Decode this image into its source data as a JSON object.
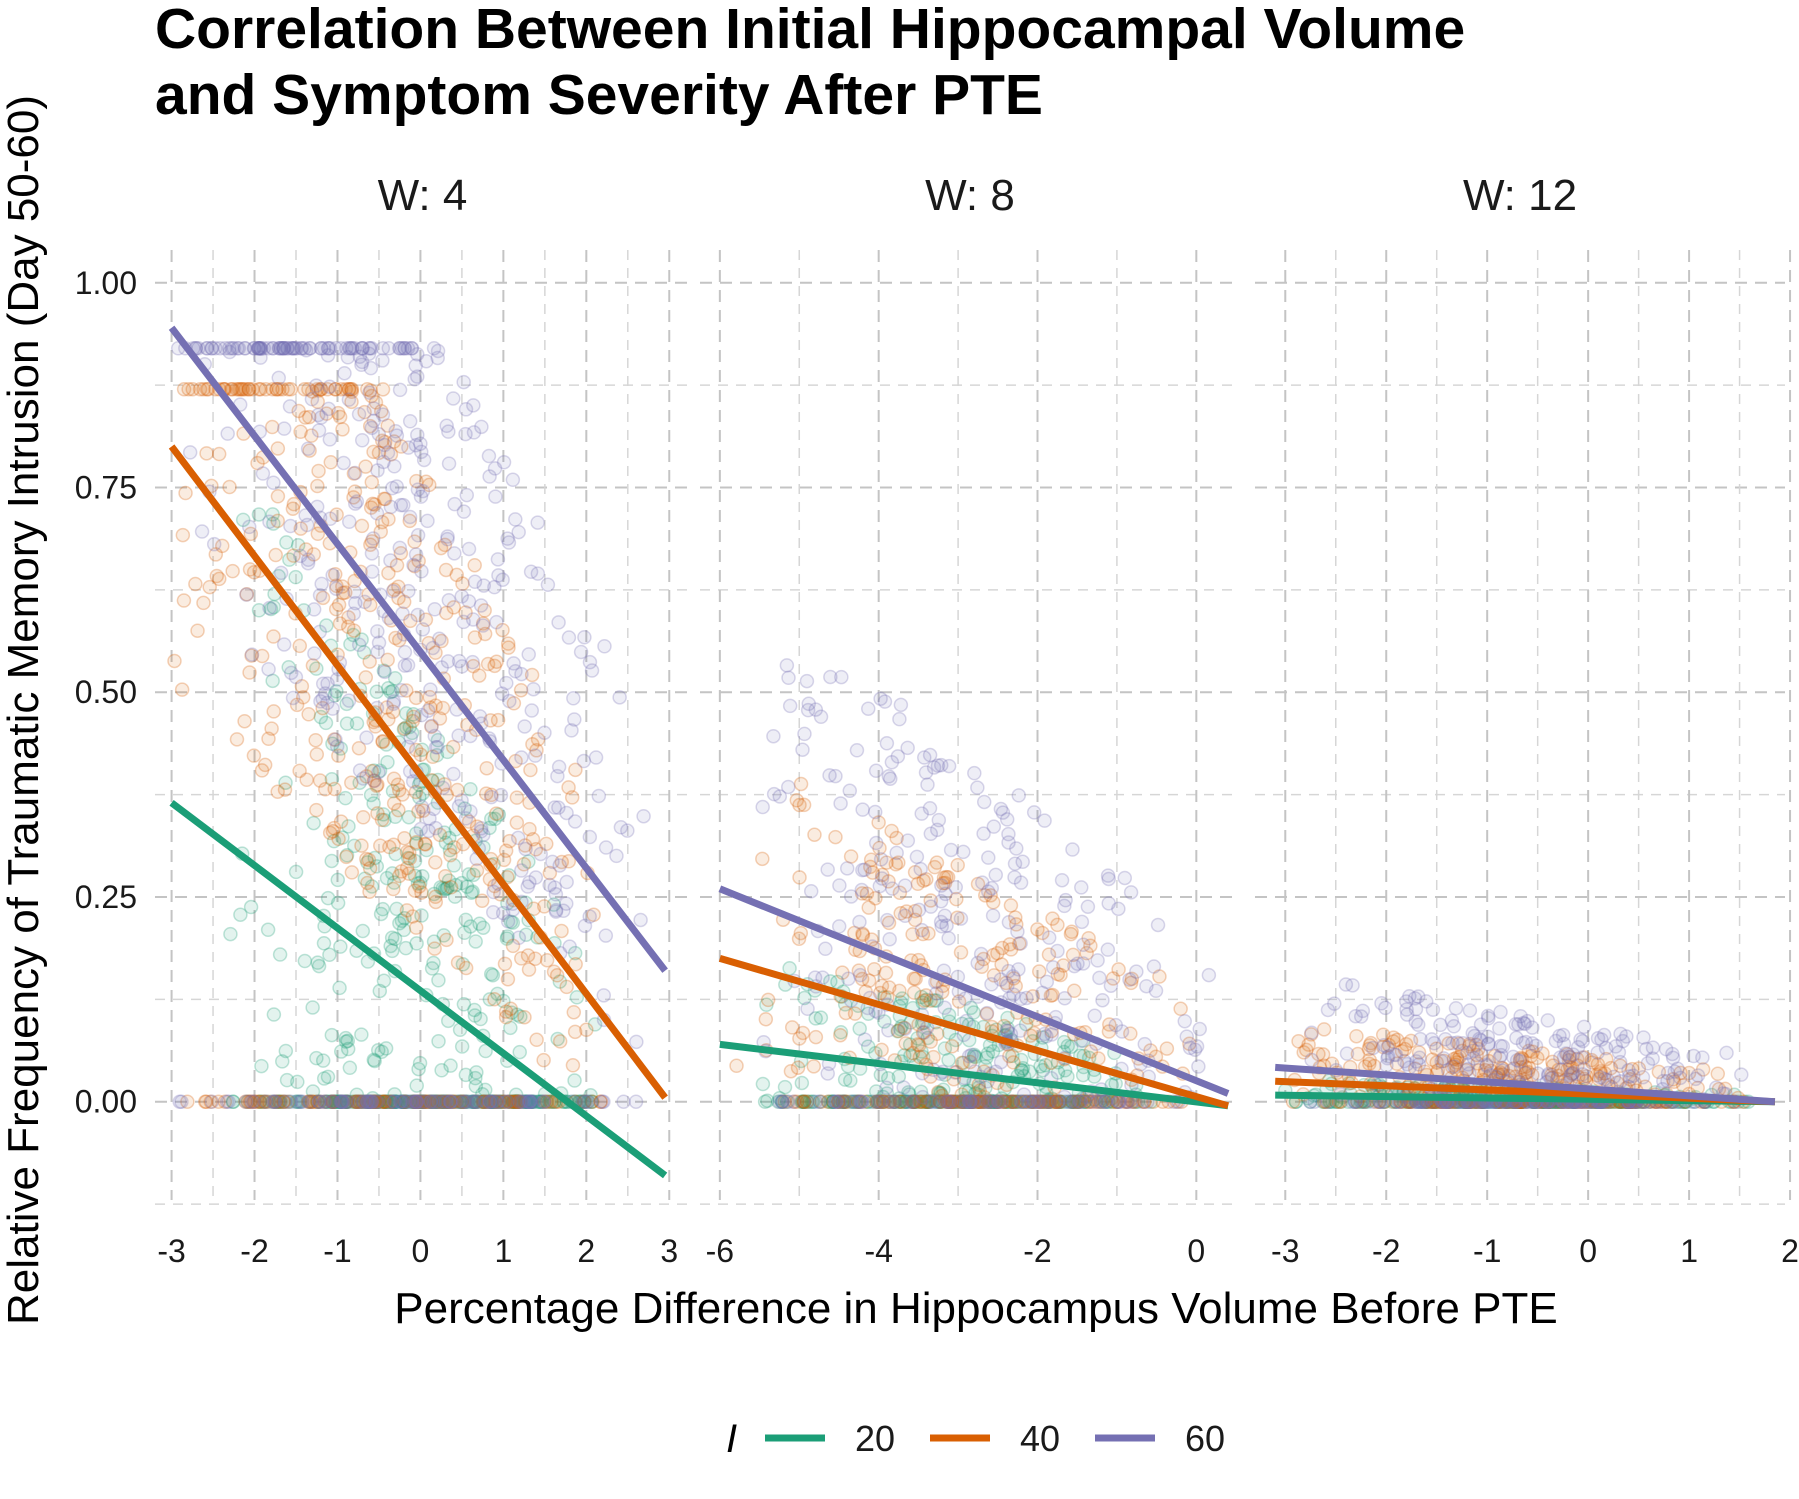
{
  "chart_data": {
    "type": "scatter",
    "title_line1": "Correlation Between Initial Hippocampal Volume",
    "title_line2": "and Symptom Severity After PTE",
    "xlabel": "Percentage Difference in Hippocampus Volume Before PTE",
    "ylabel": "Relative Frequency of Traumatic Memory Intrusion (Day 50-60)",
    "ylim": [
      -0.12,
      1.04
    ],
    "yticks": [
      0.0,
      0.25,
      0.5,
      0.75,
      1.0
    ],
    "ytick_labels": [
      "0.00",
      "0.25",
      "0.50",
      "0.75",
      "1.00"
    ],
    "grid": true,
    "legend": {
      "title": "I",
      "placement": "bottom",
      "entries": [
        {
          "label": "20",
          "color": "#1b9e77"
        },
        {
          "label": "40",
          "color": "#d95f02"
        },
        {
          "label": "60",
          "color": "#7570b3"
        }
      ]
    },
    "panels": [
      {
        "label": "W: 4",
        "xlim": [
          -3.2,
          3.25
        ],
        "xticks": [
          -3,
          -2,
          -1,
          0,
          1,
          2,
          3
        ],
        "xtick_labels": [
          "-3",
          "-2",
          "-1",
          "0",
          "1",
          "2",
          "3"
        ],
        "series": [
          {
            "name": "20",
            "line": {
              "x": [
                -3.0,
                2.95
              ],
              "y": [
                0.365,
                -0.09
              ]
            },
            "point_x_range": [
              -2.3,
              2.2
            ],
            "point_y_max": 0.75
          },
          {
            "name": "40",
            "line": {
              "x": [
                -3.0,
                2.95
              ],
              "y": [
                0.8,
                0.005
              ]
            },
            "point_x_range": [
              -3.0,
              2.2
            ],
            "point_y_max": 0.87
          },
          {
            "name": "60",
            "line": {
              "x": [
                -3.0,
                2.95
              ],
              "y": [
                0.945,
                0.16
              ]
            },
            "point_x_range": [
              -3.0,
              2.8
            ],
            "point_y_max": 0.92
          }
        ]
      },
      {
        "label": "W: 8",
        "xlim": [
          -6.25,
          0.55
        ],
        "xticks": [
          -6,
          -4,
          -2,
          0
        ],
        "xtick_labels": [
          "-6",
          "-4",
          "-2",
          "0"
        ],
        "series": [
          {
            "name": "20",
            "line": {
              "x": [
                -6.0,
                0.4
              ],
              "y": [
                0.07,
                -0.005
              ]
            },
            "point_x_range": [
              -5.5,
              -0.5
            ],
            "point_y_max": 0.18
          },
          {
            "name": "40",
            "line": {
              "x": [
                -6.0,
                0.4
              ],
              "y": [
                0.175,
                -0.005
              ]
            },
            "point_x_range": [
              -5.8,
              0.0
            ],
            "point_y_max": 0.42
          },
          {
            "name": "60",
            "line": {
              "x": [
                -6.0,
                0.4
              ],
              "y": [
                0.26,
                0.01
              ]
            },
            "point_x_range": [
              -5.6,
              0.2
            ],
            "point_y_max": 0.59
          }
        ]
      },
      {
        "label": "W: 12",
        "xlim": [
          -3.3,
          1.95
        ],
        "xticks": [
          -3,
          -2,
          -1,
          0,
          1,
          2
        ],
        "xtick_labels": [
          "-3",
          "-2",
          "-1",
          "0",
          "1",
          "2"
        ],
        "series": [
          {
            "name": "20",
            "line": {
              "x": [
                -3.1,
                1.85
              ],
              "y": [
                0.008,
                0.0
              ]
            },
            "point_x_range": [
              -3.0,
              1.6
            ],
            "point_y_max": 0.03
          },
          {
            "name": "40",
            "line": {
              "x": [
                -3.1,
                1.85
              ],
              "y": [
                0.025,
                0.0
              ]
            },
            "point_x_range": [
              -3.0,
              1.6
            ],
            "point_y_max": 0.11
          },
          {
            "name": "60",
            "line": {
              "x": [
                -3.1,
                1.85
              ],
              "y": [
                0.042,
                0.0
              ]
            },
            "point_x_range": [
              -2.8,
              1.6
            ],
            "point_y_max": 0.18
          }
        ]
      }
    ]
  }
}
